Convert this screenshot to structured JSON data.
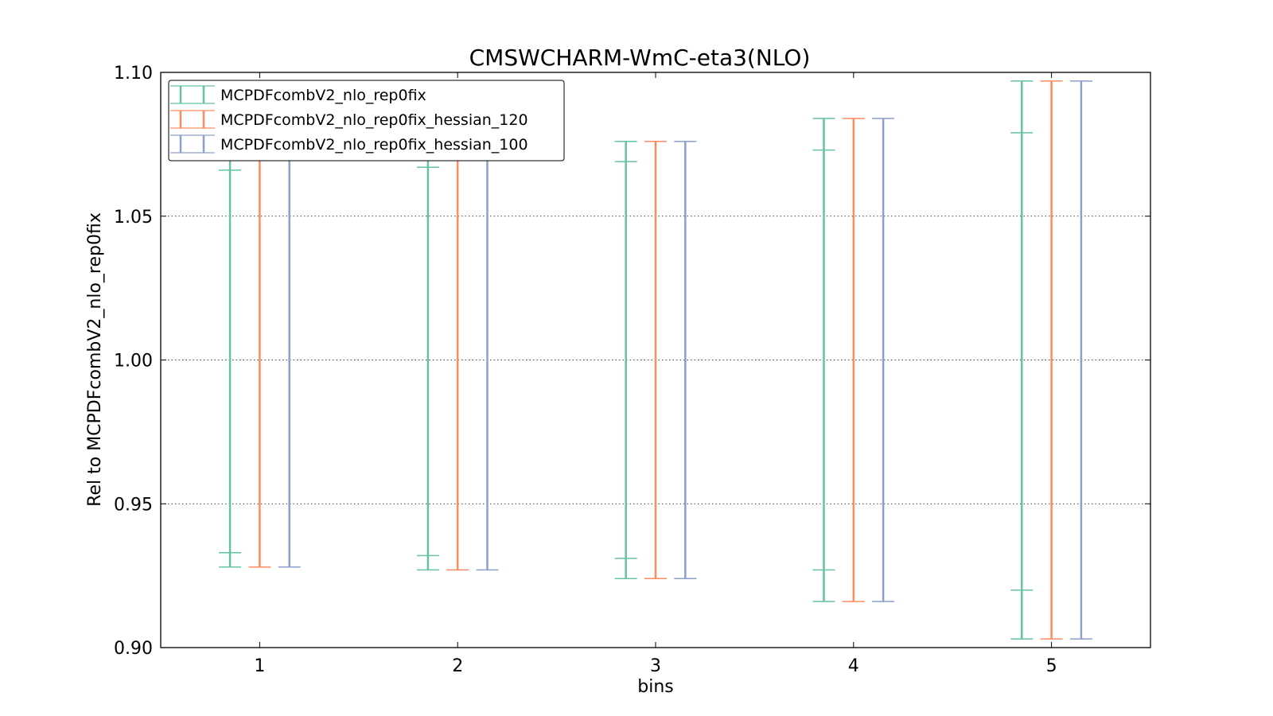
{
  "chart_data": {
    "type": "errorbar",
    "title": "CMSWCHARM-WmC-eta3(NLO)",
    "xlabel": "bins",
    "ylabel": "Rel to MCPDFcombV2_nlo_rep0fix",
    "xlim": [
      0.5,
      5.5
    ],
    "ylim": [
      0.9,
      1.1
    ],
    "x_ticks": [
      "1",
      "2",
      "3",
      "4",
      "5"
    ],
    "y_ticks": [
      "0.90",
      "0.95",
      "1.00",
      "1.05",
      "1.10"
    ],
    "grid": "horizontal dotted",
    "legend_position": "top-left",
    "bins": [
      1,
      2,
      3,
      4,
      5
    ],
    "series": [
      {
        "name": "MCPDFcombV2_nlo_rep0fix",
        "color": "#66c2a5",
        "x_offset": -0.15,
        "lower": [
          0.928,
          0.927,
          0.924,
          0.916,
          0.903
        ],
        "upper": [
          1.072,
          1.073,
          1.076,
          1.084,
          1.097
        ],
        "inner_lower": [
          0.933,
          0.932,
          0.931,
          0.927,
          0.92
        ],
        "inner_upper": [
          1.066,
          1.067,
          1.069,
          1.073,
          1.079
        ]
      },
      {
        "name": "MCPDFcombV2_nlo_rep0fix_hessian_120",
        "color": "#fc8d62",
        "x_offset": 0.0,
        "lower": [
          0.928,
          0.927,
          0.924,
          0.916,
          0.903
        ],
        "upper": [
          1.072,
          1.073,
          1.076,
          1.084,
          1.097
        ]
      },
      {
        "name": "MCPDFcombV2_nlo_rep0fix_hessian_100",
        "color": "#8da0cb",
        "x_offset": 0.15,
        "lower": [
          0.928,
          0.927,
          0.924,
          0.916,
          0.903
        ],
        "upper": [
          1.072,
          1.073,
          1.076,
          1.084,
          1.097
        ]
      }
    ]
  }
}
